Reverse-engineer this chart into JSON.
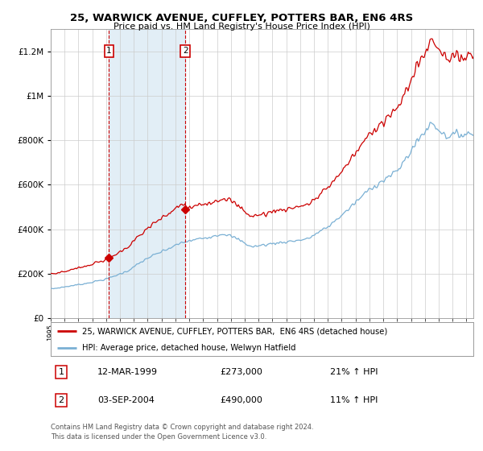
{
  "title1": "25, WARWICK AVENUE, CUFFLEY, POTTERS BAR, EN6 4RS",
  "title2": "Price paid vs. HM Land Registry's House Price Index (HPI)",
  "legend_line1": "25, WARWICK AVENUE, CUFFLEY, POTTERS BAR,  EN6 4RS (detached house)",
  "legend_line2": "HPI: Average price, detached house, Welwyn Hatfield",
  "sale1_date": "12-MAR-1999",
  "sale1_price": 273000,
  "sale1_label": "21% ↑ HPI",
  "sale2_date": "03-SEP-2004",
  "sale2_price": 490000,
  "sale2_label": "11% ↑ HPI",
  "footer": "Contains HM Land Registry data © Crown copyright and database right 2024.\nThis data is licensed under the Open Government Licence v3.0.",
  "house_color": "#cc0000",
  "hpi_color": "#7ab0d4",
  "vline_color": "#cc0000",
  "shade_color": "#d0e4f0",
  "bg_color": "#ffffff",
  "grid_color": "#cccccc",
  "ylim_min": 0,
  "ylim_max": 1300000,
  "sale1_year": 1999.21,
  "sale2_year": 2004.71
}
